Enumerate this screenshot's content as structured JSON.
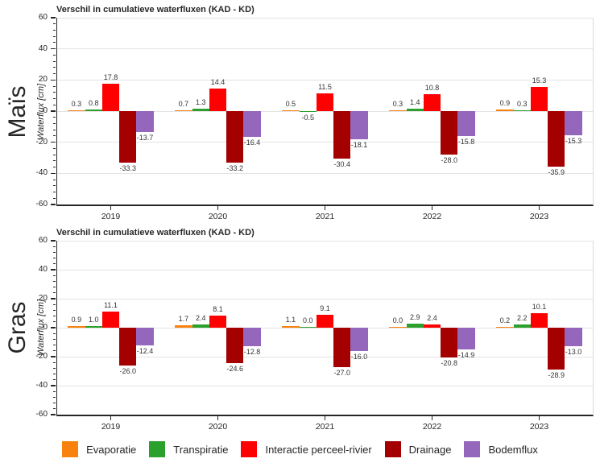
{
  "chart_data": [
    {
      "type": "bar",
      "title": "Verschil in cumulatieve waterfluxen (KAD - KD)",
      "row_label": "Maïs",
      "xlabel": "",
      "ylabel": "Waterflux [cm]",
      "ylim": [
        -60,
        60
      ],
      "ytick_interval": 20,
      "yminor_interval": 4,
      "grid": true,
      "categories": [
        "2019",
        "2020",
        "2021",
        "2022",
        "2023"
      ],
      "series": [
        {
          "name": "Evaporatie",
          "color": "#F8820D",
          "values": [
            0.3,
            0.7,
            0.5,
            0.3,
            0.9
          ]
        },
        {
          "name": "Transpiratie",
          "color": "#2CA02C",
          "values": [
            0.8,
            1.3,
            -0.5,
            1.4,
            0.3
          ]
        },
        {
          "name": "Interactie perceel-rivier",
          "color": "#FE0000",
          "values": [
            17.8,
            14.4,
            11.5,
            10.8,
            15.3
          ]
        },
        {
          "name": "Drainage",
          "color": "#A50000",
          "values": [
            -33.3,
            -33.2,
            -30.4,
            -28.0,
            -35.9
          ]
        },
        {
          "name": "Bodemflux",
          "color": "#9467BD",
          "values": [
            -13.7,
            -16.4,
            -18.1,
            -15.8,
            -15.3
          ]
        }
      ]
    },
    {
      "type": "bar",
      "title": "Verschil in cumulatieve waterfluxen (KAD - KD)",
      "row_label": "Gras",
      "xlabel": "",
      "ylabel": "Waterflux [cm]",
      "ylim": [
        -60,
        60
      ],
      "ytick_interval": 20,
      "yminor_interval": 4,
      "grid": true,
      "categories": [
        "2019",
        "2020",
        "2021",
        "2022",
        "2023"
      ],
      "series": [
        {
          "name": "Evaporatie",
          "color": "#F8820D",
          "values": [
            0.9,
            1.7,
            1.1,
            0.0,
            0.2
          ]
        },
        {
          "name": "Transpiratie",
          "color": "#2CA02C",
          "values": [
            1.0,
            2.4,
            0.0,
            2.9,
            2.2
          ]
        },
        {
          "name": "Interactie perceel-rivier",
          "color": "#FE0000",
          "values": [
            11.1,
            8.1,
            9.1,
            2.4,
            10.1
          ]
        },
        {
          "name": "Drainage",
          "color": "#A50000",
          "values": [
            -26.0,
            -24.6,
            -27.0,
            -20.8,
            -28.9
          ]
        },
        {
          "name": "Bodemflux",
          "color": "#9467BD",
          "values": [
            -12.4,
            -12.8,
            -16.0,
            -14.9,
            -13.0
          ]
        }
      ]
    }
  ],
  "legend": {
    "entries": [
      {
        "label": "Evaporatie",
        "color": "#F8820D"
      },
      {
        "label": "Transpiratie",
        "color": "#2CA02C"
      },
      {
        "label": "Interactie perceel-rivier",
        "color": "#FE0000"
      },
      {
        "label": "Drainage",
        "color": "#A50000"
      },
      {
        "label": "Bodemflux",
        "color": "#9467BD"
      }
    ]
  }
}
